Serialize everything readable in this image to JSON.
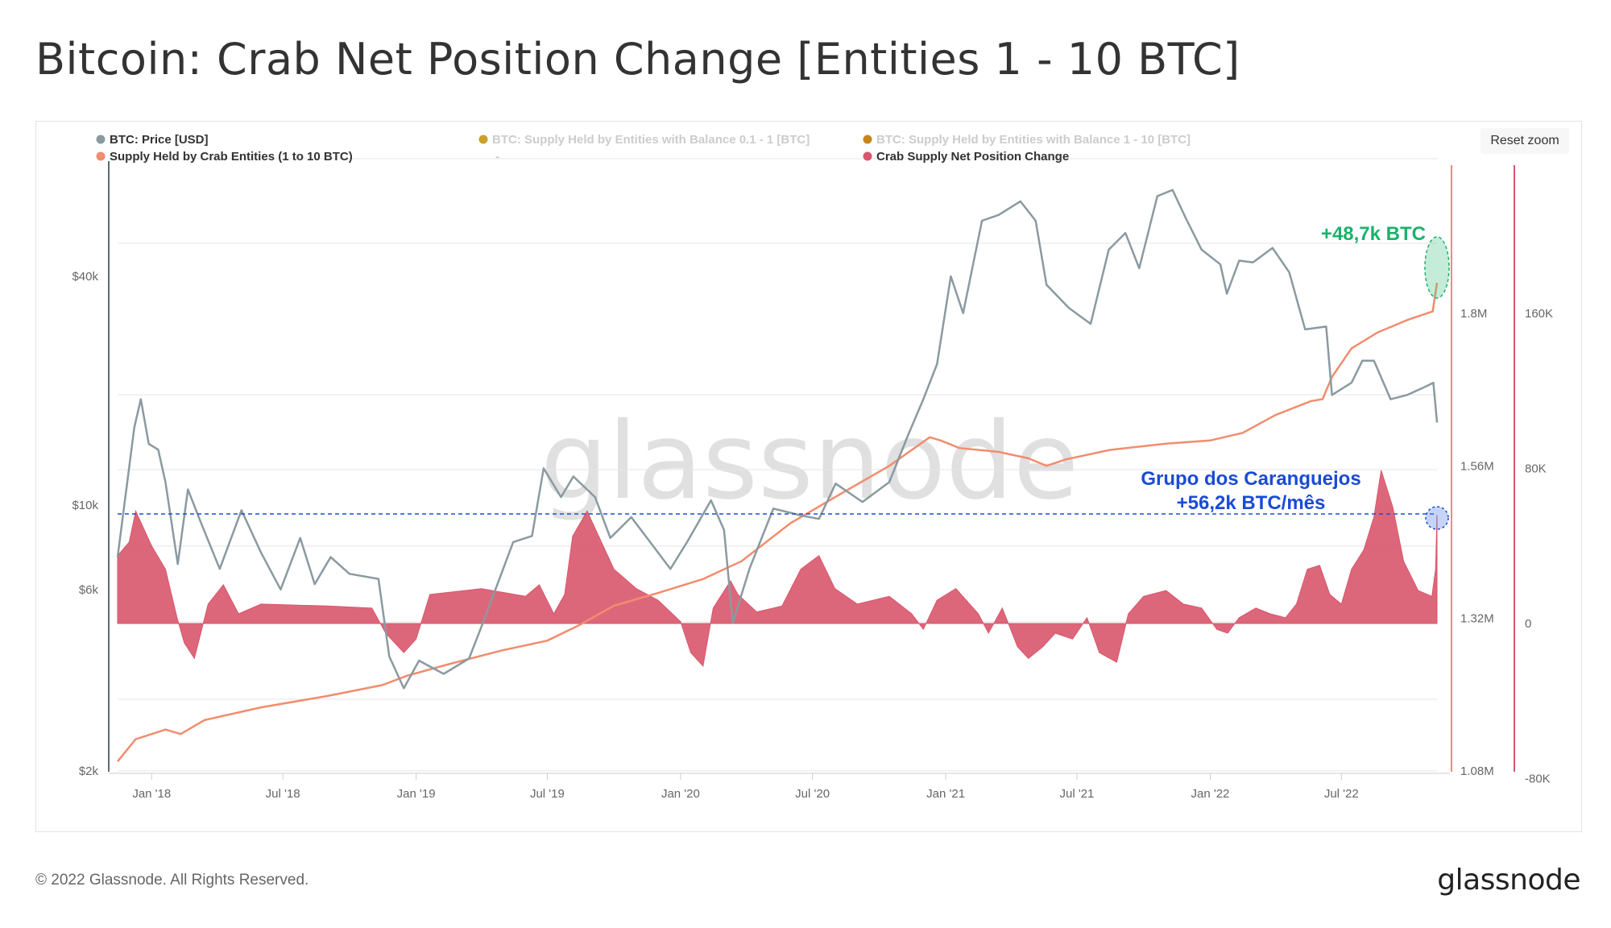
{
  "page": {
    "title": "Bitcoin: Crab Net Position Change [Entities 1 - 10 BTC]",
    "footer_copyright": "© 2022 Glassnode. All Rights Reserved.",
    "footer_logo": "glassnode",
    "watermark": "glassnode",
    "reset_zoom_label": "Reset zoom"
  },
  "colors": {
    "price": "#8a9aa0",
    "supply": "#f28c6e",
    "net_change": "#d9566c",
    "annotation_green": "#19b36b",
    "annotation_blue": "#1a4bd6",
    "legend_disabled": "#cccccc",
    "dot_01_1": "#c9a227",
    "dot_1_10": "#c8861a"
  },
  "legend": [
    {
      "label": "BTC: Price [USD]",
      "active": true,
      "color": "#8a9aa0"
    },
    {
      "label": "BTC: Supply Held by Entities with Balance 0.1 - 1 [BTC]",
      "active": false,
      "color": "#c9a227"
    },
    {
      "label": "BTC: Supply Held by Entities with Balance 1 - 10 [BTC]",
      "active": false,
      "color": "#c8861a"
    },
    {
      "label": "Supply Held by Crab Entities (1 to 10 BTC)",
      "active": true,
      "color": "#f28c6e"
    },
    {
      "label": "-",
      "active": false,
      "color": "#333333"
    },
    {
      "label": "Crab Supply Net Position Change",
      "active": true,
      "color": "#d9566c"
    }
  ],
  "annotations": {
    "green": "+48,7k BTC",
    "blue_line1": "Grupo dos Caranguejos",
    "blue_line2": "+56,2k BTC/mês"
  },
  "chart_data": {
    "type": "line",
    "x_range": [
      "2017-11-15",
      "2022-11-10"
    ],
    "x_ticks": [
      "Jan '18",
      "Jul '18",
      "Jan '19",
      "Jul '19",
      "Jan '20",
      "Jul '20",
      "Jan '21",
      "Jul '21",
      "Jan '22",
      "Jul '22"
    ],
    "y_axes": [
      {
        "name": "price",
        "scale": "log",
        "ticks": [
          "$2k",
          "$6k",
          "$10k",
          "$40k"
        ],
        "tick_values": [
          2000,
          6000,
          10000,
          40000
        ]
      },
      {
        "name": "supply",
        "scale": "linear",
        "ticks": [
          "1.08M",
          "1.32M",
          "1.56M",
          "1.8M"
        ],
        "tick_values": [
          1080000,
          1320000,
          1560000,
          1800000
        ]
      },
      {
        "name": "net_change",
        "scale": "linear",
        "ticks": [
          "-80K",
          "0",
          "80K",
          "160K"
        ],
        "tick_values": [
          -80000,
          0,
          80000,
          160000
        ]
      }
    ],
    "series": [
      {
        "name": "BTC: Price [USD]",
        "type": "line",
        "axis": "price",
        "points": [
          [
            "2017-11-15",
            7300
          ],
          [
            "2017-12-08",
            16000
          ],
          [
            "2017-12-17",
            19000
          ],
          [
            "2017-12-28",
            14500
          ],
          [
            "2018-01-10",
            14000
          ],
          [
            "2018-01-20",
            11500
          ],
          [
            "2018-02-06",
            7000
          ],
          [
            "2018-02-20",
            11000
          ],
          [
            "2018-03-10",
            9000
          ],
          [
            "2018-04-05",
            6800
          ],
          [
            "2018-05-05",
            9700
          ],
          [
            "2018-06-01",
            7500
          ],
          [
            "2018-06-28",
            6000
          ],
          [
            "2018-07-25",
            8200
          ],
          [
            "2018-08-14",
            6200
          ],
          [
            "2018-09-05",
            7300
          ],
          [
            "2018-10-01",
            6600
          ],
          [
            "2018-11-10",
            6400
          ],
          [
            "2018-11-25",
            4000
          ],
          [
            "2018-12-15",
            3300
          ],
          [
            "2019-01-05",
            3900
          ],
          [
            "2019-02-08",
            3600
          ],
          [
            "2019-03-15",
            3950
          ],
          [
            "2019-04-05",
            5000
          ],
          [
            "2019-05-15",
            8000
          ],
          [
            "2019-06-10",
            8300
          ],
          [
            "2019-06-26",
            12500
          ],
          [
            "2019-07-20",
            10500
          ],
          [
            "2019-08-06",
            11900
          ],
          [
            "2019-09-05",
            10500
          ],
          [
            "2019-09-26",
            8200
          ],
          [
            "2019-10-25",
            9300
          ],
          [
            "2019-11-20",
            8000
          ],
          [
            "2019-12-18",
            6800
          ],
          [
            "2020-01-10",
            8000
          ],
          [
            "2020-02-12",
            10300
          ],
          [
            "2020-03-01",
            8600
          ],
          [
            "2020-03-13",
            4900
          ],
          [
            "2020-04-05",
            6800
          ],
          [
            "2020-05-08",
            9800
          ],
          [
            "2020-06-15",
            9400
          ],
          [
            "2020-07-10",
            9200
          ],
          [
            "2020-08-02",
            11400
          ],
          [
            "2020-09-08",
            10200
          ],
          [
            "2020-10-15",
            11500
          ],
          [
            "2020-11-10",
            15300
          ],
          [
            "2020-12-01",
            19000
          ],
          [
            "2020-12-20",
            23500
          ],
          [
            "2021-01-08",
            40000
          ],
          [
            "2021-01-25",
            32000
          ],
          [
            "2021-02-20",
            56000
          ],
          [
            "2021-03-15",
            58000
          ],
          [
            "2021-04-14",
            63000
          ],
          [
            "2021-05-05",
            56000
          ],
          [
            "2021-05-20",
            38000
          ],
          [
            "2021-06-20",
            33000
          ],
          [
            "2021-07-20",
            30000
          ],
          [
            "2021-08-14",
            47000
          ],
          [
            "2021-09-06",
            52000
          ],
          [
            "2021-09-25",
            42000
          ],
          [
            "2021-10-20",
            65000
          ],
          [
            "2021-11-10",
            67500
          ],
          [
            "2021-11-28",
            57000
          ],
          [
            "2021-12-20",
            47000
          ],
          [
            "2022-01-15",
            43000
          ],
          [
            "2022-01-24",
            36000
          ],
          [
            "2022-02-10",
            44000
          ],
          [
            "2022-03-01",
            43500
          ],
          [
            "2022-03-28",
            47500
          ],
          [
            "2022-04-20",
            41000
          ],
          [
            "2022-05-12",
            29000
          ],
          [
            "2022-06-10",
            29500
          ],
          [
            "2022-06-18",
            19500
          ],
          [
            "2022-07-15",
            21000
          ],
          [
            "2022-07-30",
            24000
          ],
          [
            "2022-08-15",
            24000
          ],
          [
            "2022-09-07",
            19000
          ],
          [
            "2022-09-30",
            19500
          ],
          [
            "2022-10-25",
            20500
          ],
          [
            "2022-11-05",
            21000
          ],
          [
            "2022-11-10",
            16500
          ]
        ]
      },
      {
        "name": "Supply Held by Crab Entities (1 to 10 BTC)",
        "type": "line",
        "axis": "supply",
        "points": [
          [
            "2017-11-15",
            1095000
          ],
          [
            "2017-12-10",
            1130000
          ],
          [
            "2018-01-20",
            1145000
          ],
          [
            "2018-02-10",
            1138000
          ],
          [
            "2018-03-15",
            1160000
          ],
          [
            "2018-06-01",
            1180000
          ],
          [
            "2018-09-01",
            1198000
          ],
          [
            "2018-11-15",
            1215000
          ],
          [
            "2018-12-20",
            1230000
          ],
          [
            "2019-02-15",
            1248000
          ],
          [
            "2019-05-01",
            1270000
          ],
          [
            "2019-07-01",
            1285000
          ],
          [
            "2019-08-15",
            1310000
          ],
          [
            "2019-10-01",
            1340000
          ],
          [
            "2019-12-01",
            1360000
          ],
          [
            "2020-02-01",
            1382000
          ],
          [
            "2020-03-25",
            1410000
          ],
          [
            "2020-06-01",
            1470000
          ],
          [
            "2020-08-15",
            1520000
          ],
          [
            "2020-10-15",
            1560000
          ],
          [
            "2020-12-10",
            1605000
          ],
          [
            "2020-12-25",
            1600000
          ],
          [
            "2021-01-20",
            1588000
          ],
          [
            "2021-03-15",
            1582000
          ],
          [
            "2021-04-25",
            1572000
          ],
          [
            "2021-05-20",
            1560000
          ],
          [
            "2021-06-15",
            1570000
          ],
          [
            "2021-08-15",
            1585000
          ],
          [
            "2021-11-01",
            1595000
          ],
          [
            "2022-01-01",
            1600000
          ],
          [
            "2022-02-15",
            1612000
          ],
          [
            "2022-04-01",
            1640000
          ],
          [
            "2022-05-20",
            1662000
          ],
          [
            "2022-06-05",
            1665000
          ],
          [
            "2022-06-18",
            1700000
          ],
          [
            "2022-07-15",
            1745000
          ],
          [
            "2022-08-20",
            1770000
          ],
          [
            "2022-10-01",
            1790000
          ],
          [
            "2022-11-04",
            1803000
          ],
          [
            "2022-11-10",
            1848000
          ]
        ]
      },
      {
        "name": "Crab Supply Net Position Change",
        "type": "area",
        "axis": "net_change",
        "points": [
          [
            "2017-11-15",
            35000
          ],
          [
            "2017-12-01",
            42000
          ],
          [
            "2017-12-10",
            58000
          ],
          [
            "2018-01-01",
            40000
          ],
          [
            "2018-01-20",
            28000
          ],
          [
            "2018-02-05",
            3000
          ],
          [
            "2018-02-15",
            -10000
          ],
          [
            "2018-03-01",
            -18000
          ],
          [
            "2018-03-20",
            10000
          ],
          [
            "2018-04-10",
            20000
          ],
          [
            "2018-05-01",
            5000
          ],
          [
            "2018-06-01",
            10000
          ],
          [
            "2018-09-01",
            9000
          ],
          [
            "2018-11-01",
            8000
          ],
          [
            "2018-11-20",
            -5000
          ],
          [
            "2018-12-15",
            -15000
          ],
          [
            "2019-01-01",
            -8000
          ],
          [
            "2019-01-20",
            15000
          ],
          [
            "2019-04-01",
            18000
          ],
          [
            "2019-06-01",
            14000
          ],
          [
            "2019-06-20",
            20000
          ],
          [
            "2019-07-10",
            5000
          ],
          [
            "2019-07-25",
            15000
          ],
          [
            "2019-08-05",
            45000
          ],
          [
            "2019-08-25",
            58000
          ],
          [
            "2019-09-10",
            45000
          ],
          [
            "2019-10-01",
            28000
          ],
          [
            "2019-11-01",
            18000
          ],
          [
            "2019-12-01",
            12000
          ],
          [
            "2020-01-01",
            1000
          ],
          [
            "2020-01-15",
            -15000
          ],
          [
            "2020-02-01",
            -22000
          ],
          [
            "2020-02-15",
            8000
          ],
          [
            "2020-03-10",
            22000
          ],
          [
            "2020-03-20",
            15000
          ],
          [
            "2020-04-15",
            6000
          ],
          [
            "2020-05-20",
            9000
          ],
          [
            "2020-06-15",
            28000
          ],
          [
            "2020-07-10",
            35000
          ],
          [
            "2020-08-01",
            18000
          ],
          [
            "2020-09-01",
            10000
          ],
          [
            "2020-10-15",
            14000
          ],
          [
            "2020-11-15",
            5000
          ],
          [
            "2020-12-01",
            -3000
          ],
          [
            "2020-12-20",
            12000
          ],
          [
            "2021-01-15",
            18000
          ],
          [
            "2021-02-15",
            5000
          ],
          [
            "2021-03-01",
            -5000
          ],
          [
            "2021-03-20",
            8000
          ],
          [
            "2021-04-10",
            -12000
          ],
          [
            "2021-04-25",
            -18000
          ],
          [
            "2021-05-15",
            -12000
          ],
          [
            "2021-06-01",
            -5000
          ],
          [
            "2021-06-25",
            -8000
          ],
          [
            "2021-07-15",
            3000
          ],
          [
            "2021-08-01",
            -15000
          ],
          [
            "2021-08-25",
            -20000
          ],
          [
            "2021-09-10",
            5000
          ],
          [
            "2021-10-01",
            14000
          ],
          [
            "2021-11-01",
            17000
          ],
          [
            "2021-11-25",
            10000
          ],
          [
            "2021-12-20",
            8000
          ],
          [
            "2022-01-10",
            -3000
          ],
          [
            "2022-01-25",
            -5000
          ],
          [
            "2022-02-10",
            3000
          ],
          [
            "2022-03-05",
            8000
          ],
          [
            "2022-03-25",
            5000
          ],
          [
            "2022-04-15",
            3000
          ],
          [
            "2022-04-30",
            10000
          ],
          [
            "2022-05-15",
            28000
          ],
          [
            "2022-06-01",
            30000
          ],
          [
            "2022-06-15",
            15000
          ],
          [
            "2022-07-01",
            10000
          ],
          [
            "2022-07-15",
            28000
          ],
          [
            "2022-08-01",
            38000
          ],
          [
            "2022-08-15",
            55000
          ],
          [
            "2022-08-25",
            79000
          ],
          [
            "2022-09-10",
            60000
          ],
          [
            "2022-09-25",
            32000
          ],
          [
            "2022-10-15",
            17000
          ],
          [
            "2022-11-03",
            14000
          ],
          [
            "2022-11-08",
            28000
          ],
          [
            "2022-11-10",
            56000
          ]
        ]
      }
    ]
  }
}
